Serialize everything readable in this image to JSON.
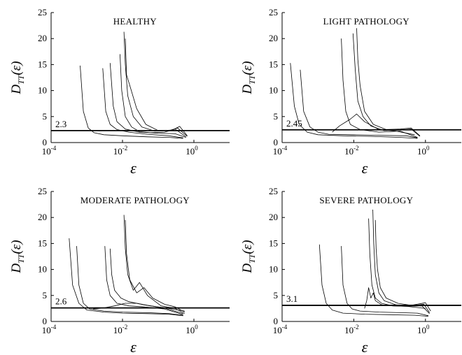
{
  "chart_data": [
    {
      "type": "line",
      "title": "HEALTHY",
      "xlabel": "ε",
      "ylabel": {
        "main": "D",
        "sub": "TT",
        "suffix": "(ε)"
      },
      "xscale": "log",
      "xlim": [
        0.0001,
        10
      ],
      "ylim": [
        0,
        25
      ],
      "xticks": [
        {
          "base": "10",
          "exp": "-4"
        },
        {
          "base": "10",
          "exp": "-2"
        },
        {
          "base": "10",
          "exp": "0"
        }
      ],
      "yticks": [
        0,
        5,
        10,
        15,
        20,
        25
      ],
      "hline": {
        "y": 2.3,
        "label": "2.3"
      },
      "series": [
        {
          "x": [
            0.00065,
            0.0008,
            0.0011,
            0.0016,
            0.003,
            0.01,
            0.05,
            0.2,
            0.5
          ],
          "y": [
            14.8,
            6.0,
            2.8,
            1.9,
            1.5,
            1.3,
            1.1,
            1.0,
            0.8
          ]
        },
        {
          "x": [
            0.0028,
            0.0034,
            0.0045,
            0.007,
            0.015,
            0.05,
            0.2,
            0.5
          ],
          "y": [
            14.3,
            6.0,
            3.5,
            2.5,
            2.0,
            1.6,
            1.3,
            0.9
          ]
        },
        {
          "x": [
            0.0045,
            0.0055,
            0.007,
            0.012,
            0.03,
            0.1,
            0.3,
            0.6
          ],
          "y": [
            15.3,
            7.0,
            4.0,
            2.6,
            2.0,
            1.8,
            1.7,
            1.0
          ]
        },
        {
          "x": [
            0.0085,
            0.0095,
            0.012,
            0.018,
            0.03,
            0.06,
            0.15,
            0.3,
            0.6
          ],
          "y": [
            17.0,
            10.0,
            5.0,
            3.0,
            2.1,
            1.9,
            2.0,
            2.6,
            1.1
          ]
        },
        {
          "x": [
            0.011,
            0.012,
            0.014,
            0.02,
            0.035,
            0.08,
            0.2,
            0.35,
            0.65
          ],
          "y": [
            21.3,
            15.0,
            9.0,
            5.0,
            3.0,
            2.2,
            2.3,
            2.8,
            1.2
          ]
        },
        {
          "x": [
            0.012,
            0.013,
            0.016,
            0.025,
            0.045,
            0.1,
            0.25,
            0.4,
            0.65
          ],
          "y": [
            20.0,
            13.0,
            11.0,
            6.5,
            3.5,
            2.3,
            2.4,
            3.1,
            1.3
          ]
        }
      ]
    },
    {
      "type": "line",
      "title": "LIGHT PATHOLOGY",
      "xlabel": "ε",
      "ylabel": {
        "main": "D",
        "sub": "TT",
        "suffix": "(ε)"
      },
      "xscale": "log",
      "xlim": [
        0.0001,
        10
      ],
      "ylim": [
        0,
        25
      ],
      "xticks": [
        {
          "base": "10",
          "exp": "-4"
        },
        {
          "base": "10",
          "exp": "-2"
        },
        {
          "base": "10",
          "exp": "0"
        }
      ],
      "yticks": [
        0,
        5,
        10,
        15,
        20,
        25
      ],
      "hline": {
        "y": 2.45,
        "label": "2.45"
      },
      "series": [
        {
          "x": [
            0.00017,
            0.00022,
            0.0003,
            0.0005,
            0.001,
            0.005,
            0.03,
            0.2,
            0.6
          ],
          "y": [
            15.3,
            7.0,
            3.5,
            2.0,
            1.5,
            1.3,
            1.2,
            1.0,
            0.8
          ]
        },
        {
          "x": [
            0.00032,
            0.0004,
            0.0006,
            0.001,
            0.002,
            0.01,
            0.05,
            0.3,
            0.6
          ],
          "y": [
            14.0,
            6.0,
            3.0,
            2.0,
            1.6,
            1.5,
            1.4,
            1.3,
            0.9
          ]
        },
        {
          "x": [
            0.0045,
            0.005,
            0.006,
            0.008,
            0.015,
            0.05,
            0.2,
            0.6
          ],
          "y": [
            20.0,
            12.0,
            6.0,
            3.5,
            2.5,
            2.0,
            2.2,
            1.0
          ]
        },
        {
          "x": [
            0.0095,
            0.011,
            0.013,
            0.018,
            0.03,
            0.07,
            0.2,
            0.4,
            0.7
          ],
          "y": [
            21.0,
            14.0,
            8.0,
            5.0,
            3.2,
            2.3,
            2.4,
            2.6,
            1.2
          ]
        },
        {
          "x": [
            0.012,
            0.013,
            0.015,
            0.02,
            0.035,
            0.08,
            0.2,
            0.4,
            0.7
          ],
          "y": [
            22.0,
            16.0,
            11.0,
            6.0,
            3.5,
            2.5,
            2.6,
            2.8,
            1.3
          ]
        },
        {
          "x": [
            0.0025,
            0.004,
            0.008,
            0.012,
            0.02,
            0.05,
            0.15,
            0.5
          ],
          "y": [
            2.0,
            3.2,
            4.5,
            5.5,
            4.0,
            2.5,
            2.2,
            1.5
          ]
        }
      ]
    },
    {
      "type": "line",
      "title": "MODERATE PATHOLOGY",
      "xlabel": "ε",
      "ylabel": {
        "main": "D",
        "sub": "TT",
        "suffix": "(ε)"
      },
      "xscale": "log",
      "xlim": [
        0.0001,
        10
      ],
      "ylim": [
        0,
        25
      ],
      "xticks": [
        {
          "base": "10",
          "exp": "-4"
        },
        {
          "base": "10",
          "exp": "-2"
        },
        {
          "base": "10",
          "exp": "0"
        }
      ],
      "yticks": [
        0,
        5,
        10,
        15,
        20,
        25
      ],
      "hline": {
        "y": 2.6,
        "label": "2.6"
      },
      "series": [
        {
          "x": [
            0.00032,
            0.0004,
            0.0006,
            0.001,
            0.003,
            0.01,
            0.05,
            0.2,
            0.5
          ],
          "y": [
            16.0,
            7.0,
            3.5,
            2.2,
            1.8,
            1.6,
            1.5,
            1.4,
            1.1
          ]
        },
        {
          "x": [
            0.00052,
            0.0006,
            0.0008,
            0.0012,
            0.003,
            0.01,
            0.05,
            0.2,
            0.5
          ],
          "y": [
            14.5,
            7.0,
            3.5,
            2.4,
            2.0,
            1.8,
            1.7,
            1.5,
            1.2
          ]
        },
        {
          "x": [
            0.0032,
            0.0036,
            0.0045,
            0.007,
            0.015,
            0.04,
            0.15,
            0.5
          ],
          "y": [
            14.5,
            8.0,
            5.0,
            3.5,
            3.0,
            2.8,
            2.4,
            1.3
          ]
        },
        {
          "x": [
            0.0045,
            0.005,
            0.006,
            0.009,
            0.015,
            0.04,
            0.15,
            0.5
          ],
          "y": [
            14.0,
            9.0,
            6.0,
            4.5,
            3.8,
            3.2,
            2.6,
            1.5
          ]
        },
        {
          "x": [
            0.011,
            0.012,
            0.014,
            0.02,
            0.03,
            0.05,
            0.12,
            0.3,
            0.55
          ],
          "y": [
            20.5,
            14.0,
            9.0,
            6.0,
            7.5,
            5.0,
            3.0,
            2.5,
            1.5
          ]
        },
        {
          "x": [
            0.012,
            0.013,
            0.016,
            0.025,
            0.04,
            0.07,
            0.15,
            0.3,
            0.55
          ],
          "y": [
            19.5,
            13.0,
            8.0,
            5.5,
            6.5,
            4.5,
            3.3,
            2.8,
            1.8
          ]
        },
        {
          "x": [
            0.0015,
            0.003,
            0.006,
            0.012,
            0.025,
            0.06,
            0.2,
            0.55
          ],
          "y": [
            2.4,
            2.6,
            3.0,
            3.5,
            3.5,
            3.0,
            2.5,
            2.0
          ]
        }
      ]
    },
    {
      "type": "line",
      "title": "SEVERE PATHOLOGY",
      "xlabel": "ε",
      "ylabel": {
        "main": "D",
        "sub": "TT",
        "suffix": "(ε)"
      },
      "xscale": "log",
      "xlim": [
        0.0001,
        10
      ],
      "ylim": [
        0,
        25
      ],
      "xticks": [
        {
          "base": "10",
          "exp": "-4"
        },
        {
          "base": "10",
          "exp": "-2"
        },
        {
          "base": "10",
          "exp": "0"
        }
      ],
      "yticks": [
        0,
        5,
        10,
        15,
        20,
        25
      ],
      "hline": {
        "y": 3.1,
        "label": "3.1"
      },
      "series": [
        {
          "x": [
            0.0011,
            0.0013,
            0.0017,
            0.0025,
            0.005,
            0.02,
            0.1,
            0.5,
            1.2
          ],
          "y": [
            14.8,
            7.0,
            3.5,
            2.2,
            1.6,
            1.4,
            1.3,
            1.2,
            1.0
          ]
        },
        {
          "x": [
            0.0045,
            0.005,
            0.0065,
            0.009,
            0.015,
            0.05,
            0.2,
            0.6,
            1.2
          ],
          "y": [
            14.5,
            7.0,
            3.5,
            2.4,
            2.0,
            1.8,
            1.7,
            1.6,
            1.1
          ]
        },
        {
          "x": [
            0.026,
            0.028,
            0.032,
            0.04,
            0.06,
            0.12,
            0.3,
            0.8,
            1.3
          ],
          "y": [
            19.8,
            13.0,
            7.0,
            4.5,
            3.5,
            3.0,
            2.9,
            3.0,
            1.5
          ]
        },
        {
          "x": [
            0.034,
            0.036,
            0.04,
            0.05,
            0.07,
            0.15,
            0.35,
            0.9,
            1.3
          ],
          "y": [
            21.5,
            15.0,
            9.0,
            5.5,
            4.0,
            3.2,
            3.0,
            3.3,
            1.7
          ]
        },
        {
          "x": [
            0.04,
            0.042,
            0.046,
            0.055,
            0.08,
            0.17,
            0.4,
            1.0,
            1.4
          ],
          "y": [
            19.5,
            14.0,
            10.0,
            6.5,
            4.5,
            3.5,
            3.1,
            3.6,
            2.0
          ]
        },
        {
          "x": [
            0.02,
            0.023,
            0.026,
            0.03,
            0.035,
            0.04,
            0.06,
            0.12,
            0.3,
            1.0
          ],
          "y": [
            2.5,
            4.0,
            6.5,
            4.5,
            5.5,
            4.0,
            3.2,
            3.0,
            2.9,
            2.5
          ]
        }
      ]
    }
  ]
}
